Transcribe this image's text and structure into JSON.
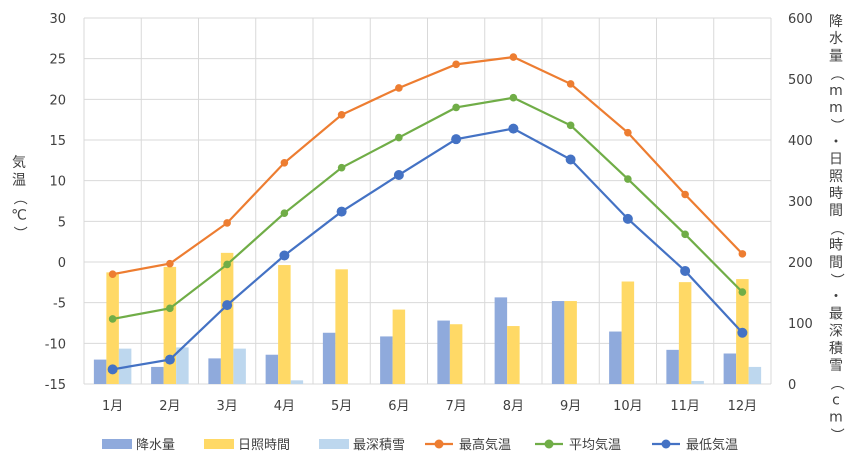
{
  "chart_data": {
    "type": "bar",
    "categories": [
      "1月",
      "2月",
      "3月",
      "4月",
      "5月",
      "6月",
      "7月",
      "8月",
      "9月",
      "10月",
      "11月",
      "12月"
    ],
    "y_left": {
      "label": "気温（℃）",
      "min": -15,
      "max": 30,
      "step": 5,
      "ticks": [
        "-15",
        "-10",
        "-5",
        "0",
        "5",
        "10",
        "15",
        "20",
        "25",
        "30"
      ]
    },
    "y_right": {
      "label": "降水量（mm）・日照時間（時間）・最深積雪（cm）",
      "min": 0,
      "max": 600,
      "step": 100,
      "ticks": [
        "0",
        "100",
        "200",
        "300",
        "400",
        "500",
        "600"
      ]
    },
    "bar_series": [
      {
        "name": "降水量",
        "color": "#8FAADC",
        "axis": "right",
        "values": [
          40,
          28,
          42,
          48,
          84,
          78,
          104,
          142,
          136,
          86,
          56,
          50
        ]
      },
      {
        "name": "日照時間",
        "color": "#FFD966",
        "axis": "right",
        "values": [
          183,
          192,
          215,
          195,
          188,
          122,
          98,
          95,
          136,
          168,
          167,
          172
        ]
      },
      {
        "name": "最深積雪",
        "color": "#BDD7EE",
        "axis": "right",
        "values": [
          58,
          60,
          58,
          6,
          0,
          0,
          0,
          0,
          0,
          0,
          5,
          28
        ]
      }
    ],
    "line_series": [
      {
        "name": "最高気温",
        "color": "#ED7D31",
        "axis": "left",
        "values": [
          -1.5,
          -0.2,
          4.8,
          12.2,
          18.1,
          21.4,
          24.3,
          25.2,
          21.9,
          15.9,
          8.3,
          1.0
        ]
      },
      {
        "name": "平均気温",
        "color": "#70AD47",
        "axis": "left",
        "values": [
          -7.0,
          -5.7,
          -0.3,
          6.0,
          11.6,
          15.3,
          19.0,
          20.2,
          16.8,
          10.2,
          3.4,
          -3.7
        ]
      },
      {
        "name": "最低気温",
        "color": "#4472C4",
        "axis": "left",
        "values": [
          -13.2,
          -12.0,
          -5.3,
          0.8,
          6.2,
          10.7,
          15.1,
          16.4,
          12.6,
          5.3,
          -1.1,
          -8.7
        ]
      }
    ],
    "legend": [
      "降水量",
      "日照時間",
      "最深積雪",
      "最高気温",
      "平均気温",
      "最低気温"
    ],
    "legend_position": "bottom",
    "grid": true
  }
}
